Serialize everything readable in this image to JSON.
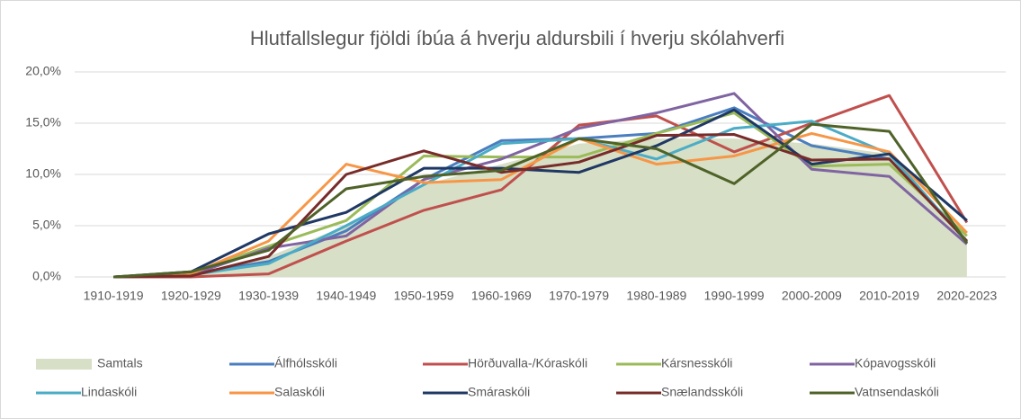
{
  "chart_data": {
    "type": "line",
    "title": "Hlutfallslegur fjöldi íbúa á hverju aldursbili í hverju skólahverfi",
    "categories": [
      "1910-1919",
      "1920-1929",
      "1930-1939",
      "1940-1949",
      "1950-1959",
      "1960-1969",
      "1970-1979",
      "1980-1989",
      "1990-1999",
      "2000-2009",
      "2010-2019",
      "2020-2023"
    ],
    "ylim": [
      0,
      20
    ],
    "yticks": [
      {
        "value": 0,
        "label": "0,0%"
      },
      {
        "value": 5,
        "label": "5,0%"
      },
      {
        "value": 10,
        "label": "10,0%"
      },
      {
        "value": 15,
        "label": "15,0%"
      },
      {
        "value": 20,
        "label": "20,0%"
      }
    ],
    "grid": true,
    "legend": "bottom",
    "series": [
      {
        "name": "Samtals",
        "kind": "area",
        "color": "#d7dfc6",
        "values": [
          0,
          0.3,
          2,
          5,
          9,
          11,
          13,
          13.5,
          13.5,
          13,
          12,
          3.5
        ]
      },
      {
        "name": "Álfhólsskóli",
        "color": "#4a7ebf",
        "values": [
          0,
          0.3,
          1.5,
          4.5,
          9.5,
          13.3,
          13.5,
          14,
          16.5,
          12.8,
          11.5,
          3.5
        ]
      },
      {
        "name": "Hörðuvalla-/Kóraskóli",
        "color": "#c0504d",
        "values": [
          0,
          0,
          0.3,
          3.5,
          6.5,
          8.5,
          14.8,
          15.7,
          12.2,
          15,
          17.7,
          5.3
        ]
      },
      {
        "name": "Kársnesskóli",
        "color": "#9bbb59",
        "values": [
          0,
          0.4,
          3,
          5.5,
          11.8,
          11.7,
          11.7,
          14,
          16,
          10.8,
          11,
          4
        ]
      },
      {
        "name": "Kópavogsskóli",
        "color": "#8064a2",
        "values": [
          0,
          0.2,
          2.8,
          4,
          9.5,
          11.5,
          14.5,
          16,
          17.9,
          10.5,
          9.8,
          3.2
        ]
      },
      {
        "name": "Lindaskóli",
        "color": "#4bacc6",
        "values": [
          0,
          0.2,
          1.3,
          5,
          9,
          13,
          13.5,
          11.5,
          14.5,
          15.2,
          12,
          3.4
        ]
      },
      {
        "name": "Salaskóli",
        "color": "#f79646",
        "values": [
          0,
          0.3,
          3.5,
          11,
          9.2,
          9.5,
          13.5,
          11,
          11.8,
          14,
          12.2,
          4.3
        ]
      },
      {
        "name": "Smáraskóli",
        "color": "#1f3864",
        "values": [
          0,
          0.5,
          4.2,
          6.3,
          10.6,
          10.6,
          10.2,
          12.8,
          16.3,
          11,
          12,
          5.5
        ]
      },
      {
        "name": "Snælandsskóli",
        "color": "#772c2a",
        "values": [
          0,
          0.1,
          2,
          10,
          12.3,
          10.2,
          11.2,
          13.8,
          13.9,
          11.4,
          11.5,
          3.5
        ]
      },
      {
        "name": "Vatnsendaskóli",
        "color": "#4f6228",
        "values": [
          0,
          0.5,
          2.6,
          8.6,
          9.8,
          10.4,
          13.5,
          12.5,
          9.1,
          14.9,
          14.2,
          3.3
        ]
      }
    ]
  }
}
